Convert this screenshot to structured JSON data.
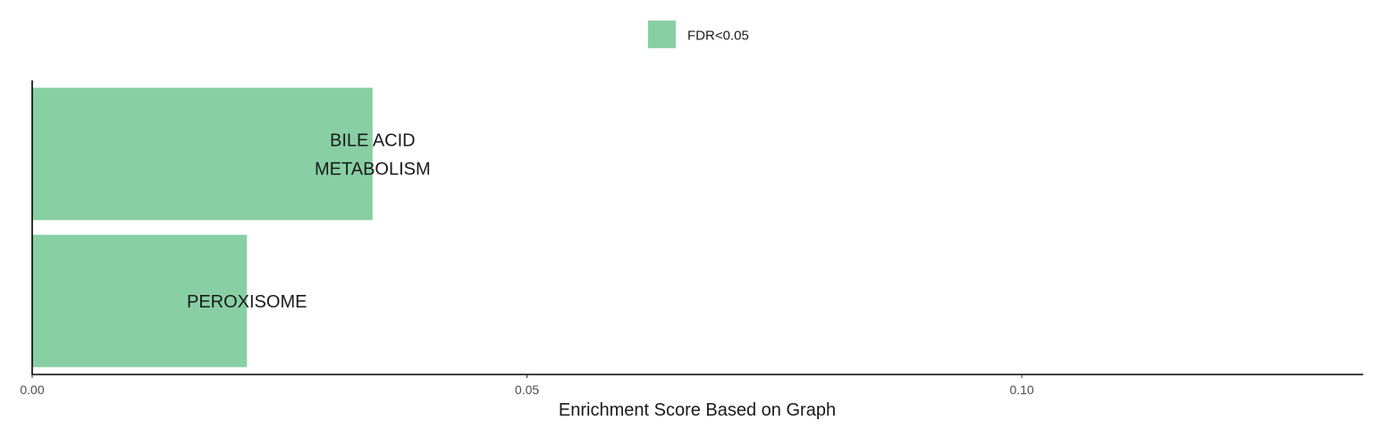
{
  "chart_data": {
    "type": "bar",
    "orientation": "horizontal",
    "categories": [
      "BILE ACID METABOLISM",
      "PEROXISOME"
    ],
    "label_lines": [
      [
        "BILE ACID",
        "METABOLISM"
      ],
      [
        "PEROXISOME"
      ]
    ],
    "values": [
      0.0344,
      0.0217
    ],
    "xlabel": "Enrichment Score Based on Graph",
    "ylabel": "",
    "xlim": [
      0,
      0.1345
    ],
    "x_ticks": [
      0.0,
      0.05,
      0.1
    ],
    "x_tick_labels": [
      "0.00",
      "0.05",
      "0.10"
    ],
    "legend": {
      "position": "top",
      "entries": [
        {
          "label": "FDR<0.05",
          "color": "#88d0a4"
        }
      ]
    },
    "bar_color": "#88d0a4",
    "grid": false
  }
}
